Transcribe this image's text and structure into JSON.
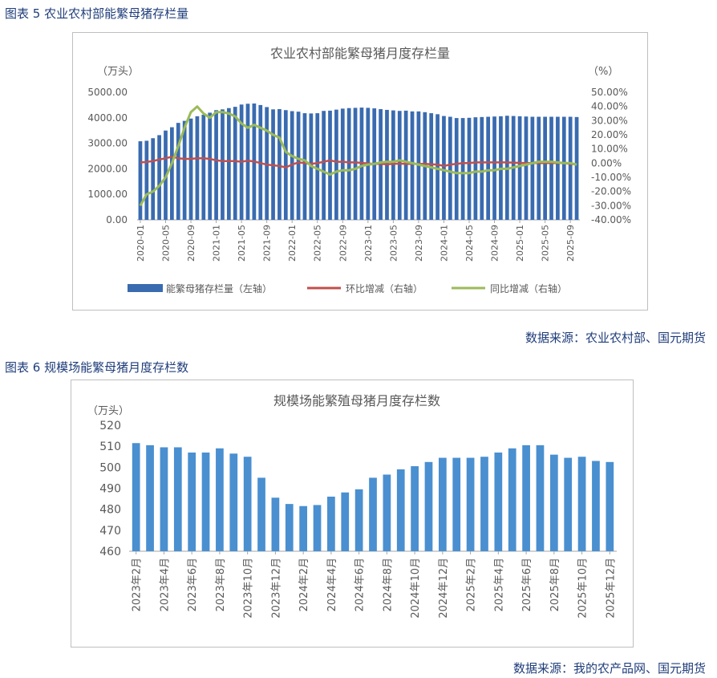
{
  "fig5": {
    "heading": "图表 5 农业农村部能繁母猪存栏量",
    "source": "数据来源：农业农村部、国元期货"
  },
  "fig6": {
    "heading": "图表 6 规模场能繁母猪月度存栏数",
    "source": "数据来源：我的农产品网、国元期货"
  },
  "chart_data": [
    {
      "type": "bar+line",
      "title": "农业农村部能繁母猪月度存栏量",
      "left_unit": "（万头）",
      "right_unit": "（%）",
      "ylim_left": [
        0,
        5000
      ],
      "ylim_right": [
        -40,
        50
      ],
      "left_ticks": [
        "0.00",
        "1000.00",
        "2000.00",
        "3000.00",
        "4000.00",
        "5000.00"
      ],
      "right_ticks": [
        "-40.00%",
        "-30.00%",
        "-20.00%",
        "-10.00%",
        "0.00%",
        "10.00%",
        "20.00%",
        "30.00%",
        "40.00%",
        "50.00%"
      ],
      "x_tick_labels": [
        "2020-01",
        "2020-05",
        "2020-09",
        "2021-01",
        "2021-05",
        "2021-09",
        "2022-01",
        "2022-05",
        "2022-09",
        "2023-01",
        "2023-05",
        "2023-09",
        "2024-01",
        "2024-05",
        "2024-09",
        "2025-01",
        "2025-05",
        "2025-09"
      ],
      "x_tick_step": 4,
      "months": [
        "2020-01",
        "2020-02",
        "2020-03",
        "2020-04",
        "2020-05",
        "2020-06",
        "2020-07",
        "2020-08",
        "2020-09",
        "2020-10",
        "2020-11",
        "2020-12",
        "2021-01",
        "2021-02",
        "2021-03",
        "2021-04",
        "2021-05",
        "2021-06",
        "2021-07",
        "2021-08",
        "2021-09",
        "2021-10",
        "2021-11",
        "2021-12",
        "2022-01",
        "2022-02",
        "2022-03",
        "2022-04",
        "2022-05",
        "2022-06",
        "2022-07",
        "2022-08",
        "2022-09",
        "2022-10",
        "2022-11",
        "2022-12",
        "2023-01",
        "2023-02",
        "2023-03",
        "2023-04",
        "2023-05",
        "2023-06",
        "2023-07",
        "2023-08",
        "2023-09",
        "2023-10",
        "2023-11",
        "2023-12",
        "2024-01",
        "2024-02",
        "2024-03",
        "2024-04",
        "2024-05",
        "2024-06",
        "2024-07",
        "2024-08",
        "2024-09",
        "2024-10",
        "2024-11",
        "2024-12",
        "2025-01",
        "2025-02",
        "2025-03",
        "2025-04",
        "2025-05",
        "2025-06",
        "2025-07",
        "2025-08",
        "2025-09",
        "2025-10"
      ],
      "series": [
        {
          "name": "能繁母猪存栏量（左轴）",
          "kind": "bar",
          "axis": "left",
          "color": "#3a6bb0",
          "values": [
            3080,
            3100,
            3200,
            3320,
            3500,
            3630,
            3800,
            3880,
            3970,
            4060,
            4120,
            4200,
            4300,
            4330,
            4380,
            4430,
            4520,
            4550,
            4560,
            4500,
            4420,
            4330,
            4340,
            4300,
            4260,
            4240,
            4180,
            4170,
            4180,
            4270,
            4280,
            4320,
            4360,
            4380,
            4390,
            4400,
            4390,
            4370,
            4340,
            4310,
            4290,
            4270,
            4280,
            4250,
            4250,
            4220,
            4180,
            4140,
            4070,
            4040,
            3990,
            3990,
            4000,
            4020,
            4030,
            4040,
            4050,
            4060,
            4080,
            4070,
            4060,
            4050,
            4040,
            4040,
            4040,
            4040,
            4040,
            4040,
            4040,
            4030
          ]
        },
        {
          "name": "环比增减（右轴）",
          "kind": "line",
          "axis": "right",
          "color": "#c0504d",
          "values": [
            0.5,
            0.8,
            1.5,
            2.5,
            3.5,
            4.5,
            3.5,
            3.0,
            3.0,
            3.5,
            3.5,
            3.0,
            2.0,
            1.5,
            1.5,
            1.5,
            1.0,
            1.8,
            1.2,
            0.0,
            -1.0,
            -1.5,
            -2.0,
            -3.0,
            -1.0,
            0.5,
            0.0,
            -0.5,
            0.0,
            1.0,
            2.0,
            1.0,
            1.0,
            0.5,
            0.5,
            0.2,
            -0.2,
            -0.5,
            -0.5,
            -0.8,
            -0.5,
            -0.3,
            -0.5,
            -0.5,
            -0.5,
            -0.5,
            -0.8,
            -1.0,
            -2.0,
            -1.0,
            -0.5,
            0.0,
            0.0,
            0.5,
            0.5,
            0.5,
            0.5,
            0.5,
            0.5,
            0.3,
            0.2,
            0.0,
            0.0,
            0.0,
            0.0,
            0.0,
            0.0,
            0.0,
            -0.5,
            -1.0
          ]
        },
        {
          "name": "同比增减（右轴）",
          "kind": "line",
          "axis": "right",
          "color": "#9bbb59",
          "values": [
            -30,
            -22,
            -20,
            -16,
            -10,
            0,
            12,
            25,
            36,
            40,
            35,
            32,
            36,
            36,
            35,
            33,
            28,
            25,
            27,
            25,
            23,
            20,
            18,
            8,
            5,
            3,
            2,
            -2,
            -4,
            -6,
            -8,
            -6,
            -5,
            -5,
            -4,
            -2,
            -1,
            -0.5,
            0.5,
            1,
            1,
            2,
            1,
            0,
            -1,
            -2,
            -3,
            -4,
            -5,
            -6,
            -7,
            -7,
            -7,
            -6,
            -6,
            -5,
            -5,
            -4,
            -4,
            -3,
            -2,
            -1,
            0,
            1,
            1,
            1,
            0.5,
            0,
            0,
            -1
          ]
        }
      ]
    },
    {
      "type": "bar",
      "title": "规模场能繁殖母猪月度存栏数",
      "left_unit": "（万头）",
      "ylim": [
        460,
        520
      ],
      "y_ticks": [
        "460",
        "470",
        "480",
        "490",
        "500",
        "510",
        "520"
      ],
      "color": "#4a8fd0",
      "categories": [
        "2023年2月",
        "2023年3月",
        "2023年4月",
        "2023年5月",
        "2023年6月",
        "2023年7月",
        "2023年8月",
        "2023年9月",
        "2023年10月",
        "2023年11月",
        "2023年12月",
        "2024年1月",
        "2024年2月",
        "2024年3月",
        "2024年4月",
        "2024年5月",
        "2024年6月",
        "2024年7月",
        "2024年8月",
        "2024年9月",
        "2024年10月",
        "2024年11月",
        "2024年12月",
        "2025年1月",
        "2025年2月",
        "2025年3月",
        "2025年4月",
        "2025年5月",
        "2025年6月",
        "2025年7月",
        "2025年8月",
        "2025年9月",
        "2025年10月",
        "2025年11月",
        "2025年12月"
      ],
      "x_tick_step": 2,
      "values": [
        511.5,
        510.5,
        509.5,
        509.5,
        507,
        507,
        509,
        506.5,
        505,
        495,
        485.5,
        482.5,
        481.5,
        482,
        486,
        488,
        489.5,
        495,
        496.5,
        499,
        500.5,
        502.5,
        504.5,
        504.5,
        504.5,
        505,
        507,
        509,
        510.5,
        510.5,
        506,
        504.5,
        505,
        503,
        502.5
      ]
    }
  ]
}
